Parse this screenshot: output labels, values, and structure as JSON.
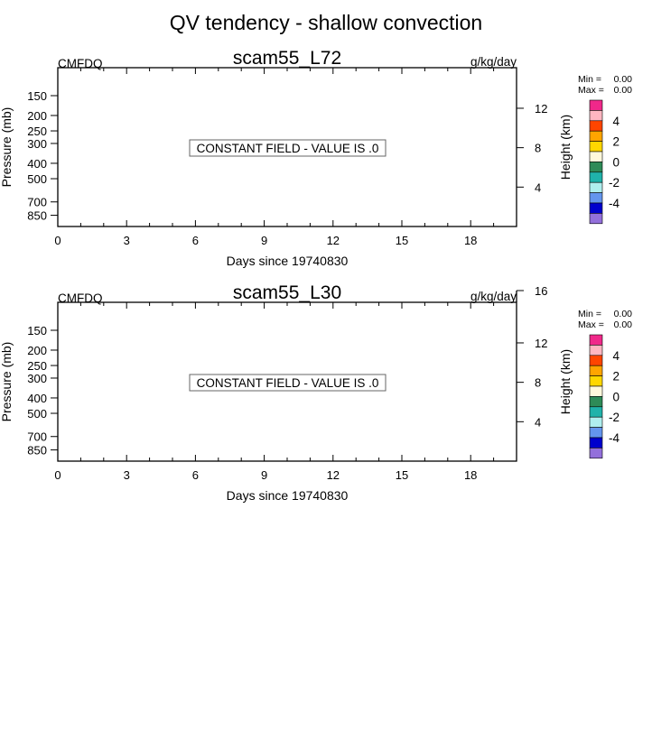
{
  "figure": {
    "title": "QV tendency - shallow convection"
  },
  "chart_data": [
    {
      "type": "heatmap",
      "title": "scam55_L72",
      "left_label": "CMFDQ",
      "right_label": "g/kg/day",
      "xlabel": "Days since 19740830",
      "ylabel": "Pressure (mb)",
      "ylabel_right": "Height (km)",
      "xlim": [
        0,
        20
      ],
      "x_ticks": [
        0,
        3,
        6,
        9,
        12,
        15,
        18
      ],
      "x_tick_labels": [
        "0",
        "3",
        "6",
        "9",
        "12",
        "15",
        "18"
      ],
      "x_minor_step": 1,
      "ylim": [
        1000,
        100
      ],
      "y_scale": "log",
      "y_ticks": [
        150,
        200,
        250,
        300,
        400,
        500,
        700,
        850
      ],
      "y_tick_labels": [
        "150",
        "200",
        "250",
        "300",
        "400",
        "500",
        "700",
        "850"
      ],
      "y2_ticks": [
        12,
        8,
        4
      ],
      "y2_tick_labels": [
        "12",
        "8",
        "4"
      ],
      "annotation": "CONSTANT FIELD - VALUE IS .0",
      "stats": {
        "min_label": "Min =",
        "min_value": "0.00",
        "max_label": "Max =",
        "max_value": "0.00"
      },
      "colorbar": {
        "colors": [
          "#f0288a",
          "#ffb6c1",
          "#ff4500",
          "#ffa500",
          "#ffd700",
          "#fff8dc",
          "#2e8b57",
          "#20b2aa",
          "#afeeee",
          "#6495ed",
          "#0000cd",
          "#9370db"
        ],
        "labels": [
          "4",
          "2",
          "0",
          "-2",
          "-4"
        ]
      },
      "values": "constant 0.0"
    },
    {
      "type": "heatmap",
      "title": "scam55_L30",
      "left_label": "CMFDQ",
      "right_label": "g/kg/day",
      "xlabel": "Days since 19740830",
      "ylabel": "Pressure (mb)",
      "ylabel_right": "Height (km)",
      "xlim": [
        0,
        20
      ],
      "x_ticks": [
        0,
        3,
        6,
        9,
        12,
        15,
        18
      ],
      "x_tick_labels": [
        "0",
        "3",
        "6",
        "9",
        "12",
        "15",
        "18"
      ],
      "x_minor_step": 1,
      "ylim": [
        1000,
        100
      ],
      "y_scale": "log",
      "y_ticks": [
        150,
        200,
        250,
        300,
        400,
        500,
        700,
        850
      ],
      "y_tick_labels": [
        "150",
        "200",
        "250",
        "300",
        "400",
        "500",
        "700",
        "850"
      ],
      "y2_ticks": [
        16,
        12,
        8,
        4
      ],
      "y2_tick_labels": [
        "16",
        "12",
        "8",
        "4"
      ],
      "annotation": "CONSTANT FIELD - VALUE IS .0",
      "stats": {
        "min_label": "Min =",
        "min_value": "0.00",
        "max_label": "Max =",
        "max_value": "0.00"
      },
      "colorbar": {
        "colors": [
          "#f0288a",
          "#ffb6c1",
          "#ff4500",
          "#ffa500",
          "#ffd700",
          "#fff8dc",
          "#2e8b57",
          "#20b2aa",
          "#afeeee",
          "#6495ed",
          "#0000cd",
          "#9370db"
        ],
        "labels": [
          "4",
          "2",
          "0",
          "-2",
          "-4"
        ]
      },
      "values": "constant 0.0"
    }
  ]
}
